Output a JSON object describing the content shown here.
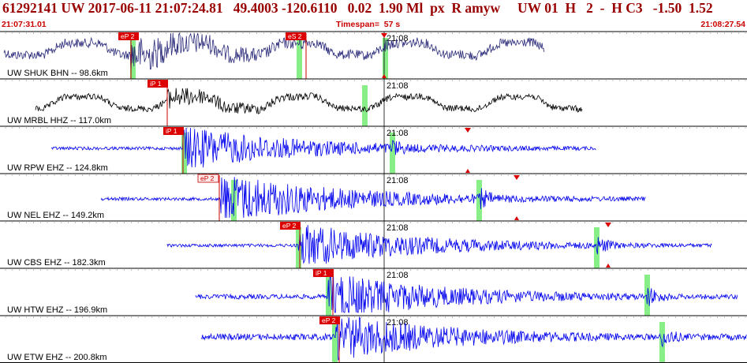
{
  "event_header": {
    "title_line": "61292141 UW 2017-06-11 21:07:24.81   49.4003 -120.6110   0.02  1.90 Ml  px  R amyw     UW 01  H   2  -  H C3   -1.50  1.52",
    "start_time": "21:07:31.01",
    "timespan": "Timespan=  57 s",
    "end_time": "21:08:27.54"
  },
  "colors": {
    "header_text": "#990000",
    "subheader_text": "#cc0000",
    "pick_box": "#dd0000",
    "pick_box_weak": "#ffe8e8",
    "green_bar": "#88ee88",
    "separator": "#000000",
    "tick": "#999999"
  },
  "minute_label": "21:08",
  "traces": [
    {
      "label": "UW SHUK BHN -- 98.6km",
      "color": "#2b2b7a",
      "picks": [
        "eP 2",
        "eS 2"
      ],
      "weak_pick": false
    },
    {
      "label": "UW MRBL HHZ -- 117.0km",
      "color": "#000000",
      "picks": [
        "iP 1"
      ],
      "weak_pick": false
    },
    {
      "label": "UW RPW EHZ -- 124.8km",
      "color": "#0000ee",
      "picks": [
        "iP 1"
      ],
      "weak_pick": false
    },
    {
      "label": "UW NEL EHZ -- 149.2km",
      "color": "#0000ee",
      "picks": [
        "eP 2"
      ],
      "weak_pick": true
    },
    {
      "label": "UW CBS EHZ -- 182.3km",
      "color": "#0000ee",
      "picks": [
        "eP 2"
      ],
      "weak_pick": false
    },
    {
      "label": "UW HTW EHZ -- 196.9km",
      "color": "#0000ee",
      "picks": [
        "iP 1"
      ],
      "weak_pick": false
    },
    {
      "label": "UW ETW EHZ -- 200.8km",
      "color": "#0000ee",
      "picks": [
        "eP 2"
      ],
      "weak_pick": false
    }
  ]
}
